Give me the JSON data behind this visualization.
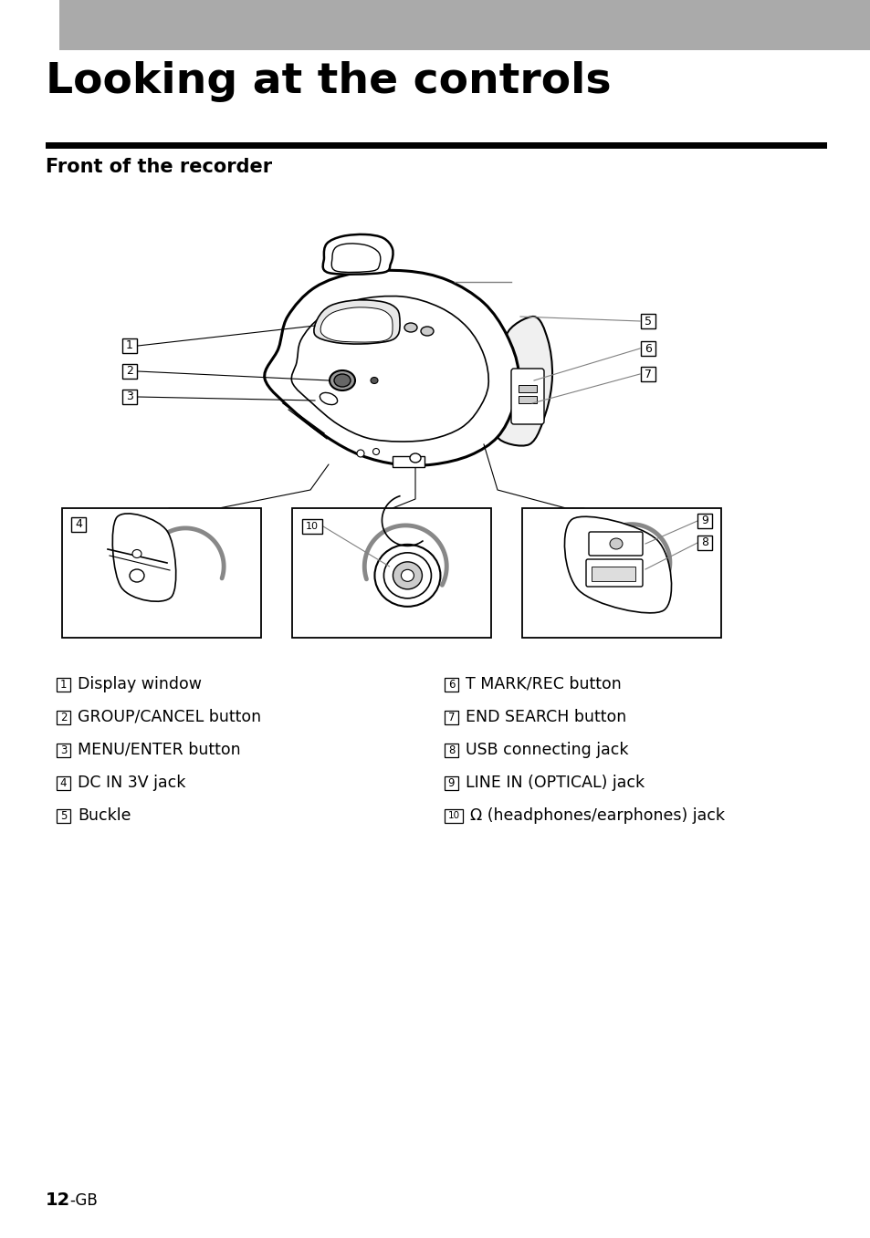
{
  "title": "Looking at the controls",
  "subtitle": "Front of the recorder",
  "header_bar_color": "#aaaaaa",
  "bg_color": "#ffffff",
  "text_color": "#000000",
  "left_items": [
    [
      "1",
      "Display window"
    ],
    [
      "2",
      "GROUP/CANCEL button"
    ],
    [
      "3",
      "MENU/ENTER button"
    ],
    [
      "4",
      "DC IN 3V jack"
    ],
    [
      "5",
      "Buckle"
    ]
  ],
  "right_items": [
    [
      "6",
      "T MARK/REC button"
    ],
    [
      "7",
      "END SEARCH button"
    ],
    [
      "8",
      "USB connecting jack"
    ],
    [
      "9",
      "LINE IN (OPTICAL) jack"
    ],
    [
      "10",
      "Ω (headphones/earphones) jack"
    ]
  ],
  "page_label": "12",
  "page_suffix": "-GB"
}
